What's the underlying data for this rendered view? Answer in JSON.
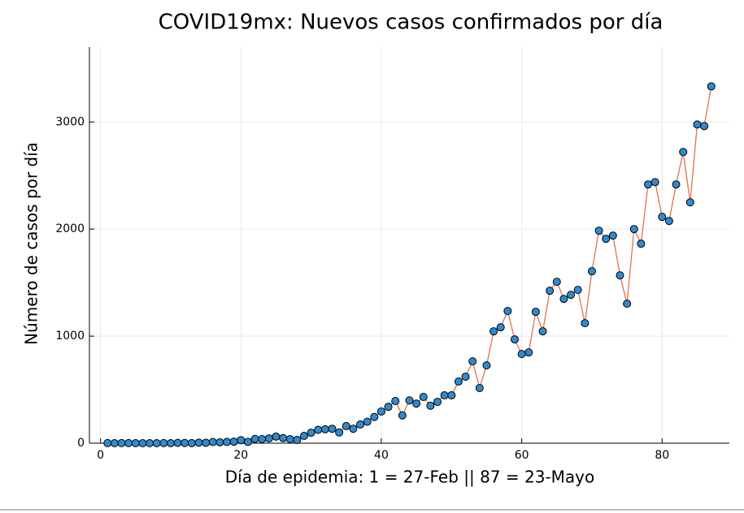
{
  "chart_data": {
    "type": "scatter-line",
    "title": "COVID19mx: Nuevos casos confirmados por día",
    "xlabel": "Día de epidemia: 1 = 27-Feb || 87 = 23-Mayo",
    "ylabel": "Número de casos por día",
    "x": [
      1,
      2,
      3,
      4,
      5,
      6,
      7,
      8,
      9,
      10,
      11,
      12,
      13,
      14,
      15,
      16,
      17,
      18,
      19,
      20,
      21,
      22,
      23,
      24,
      25,
      26,
      27,
      28,
      29,
      30,
      31,
      32,
      33,
      34,
      35,
      36,
      37,
      38,
      39,
      40,
      41,
      42,
      43,
      44,
      45,
      46,
      47,
      48,
      49,
      50,
      51,
      52,
      53,
      54,
      55,
      56,
      57,
      58,
      59,
      60,
      61,
      62,
      63,
      64,
      65,
      66,
      67,
      68,
      69,
      70,
      71,
      72,
      73,
      74,
      75,
      76,
      77,
      78,
      79,
      80,
      81,
      82,
      83,
      84,
      85,
      86,
      87
    ],
    "series": [
      {
        "values": [
          1,
          0,
          1,
          1,
          0,
          0,
          0,
          0,
          1,
          0,
          3,
          2,
          1,
          5,
          4,
          11,
          8,
          12,
          14,
          28,
          12,
          40,
          38,
          45,
          62,
          48,
          38,
          30,
          68,
          98,
          125,
          130,
          135,
          100,
          160,
          135,
          175,
          200,
          245,
          296,
          340,
          394,
          260,
          400,
          370,
          432,
          350,
          386,
          447,
          447,
          576,
          621,
          765,
          515,
          727,
          1045,
          1083,
          1235,
          970,
          833,
          848,
          1227,
          1045,
          1424,
          1508,
          1348,
          1386,
          1432,
          1121,
          1606,
          1985,
          1909,
          1939,
          1568,
          1303,
          2000,
          1864,
          2417,
          2439,
          2114,
          2076,
          2417,
          2720,
          2250,
          2977,
          2962,
          3333
        ],
        "color": "#2e8bd0",
        "line_color": "#e0734a"
      }
    ],
    "xlim": [
      -1.58,
      89.58
    ],
    "ylim": [
      0,
      3700
    ],
    "xticks": [
      0,
      20,
      40,
      60,
      80
    ],
    "yticks": [
      0,
      1000,
      2000,
      3000
    ],
    "grid": true
  }
}
